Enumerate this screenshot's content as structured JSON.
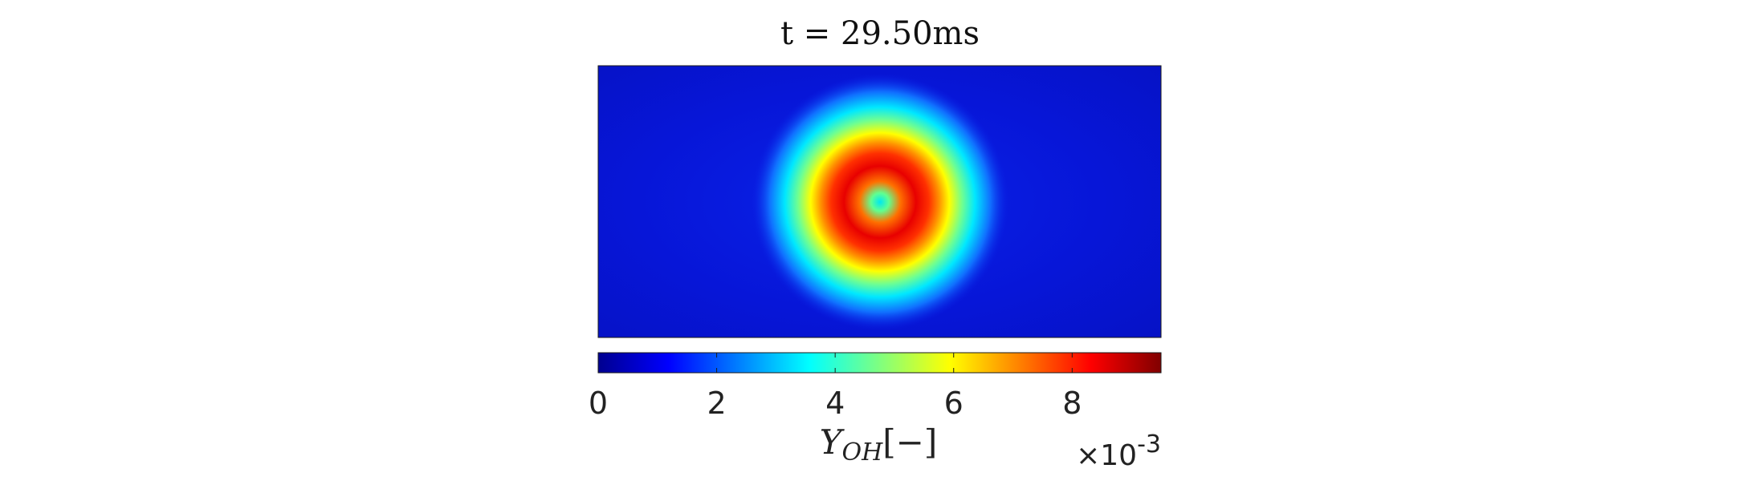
{
  "chart_data": {
    "type": "heatmap",
    "title": "t = 29.50ms",
    "field": {
      "background_value": 0.0012,
      "ring": {
        "center": [
          0.5,
          0.5
        ],
        "peak_value": 0.0088,
        "center_value": 0.0038
      }
    },
    "colorbar": {
      "colormap": "jet",
      "orientation": "horizontal",
      "position": "bottom",
      "range": [
        0,
        0.0095
      ],
      "tick_values": [
        0,
        2,
        4,
        6,
        8
      ],
      "tick_labels": [
        "0",
        "2",
        "4",
        "6",
        "8"
      ],
      "label_main": "Y",
      "label_subscript": "OH",
      "label_unit": "[−]",
      "exponent_prefix": "×10",
      "exponent": "-3"
    }
  }
}
